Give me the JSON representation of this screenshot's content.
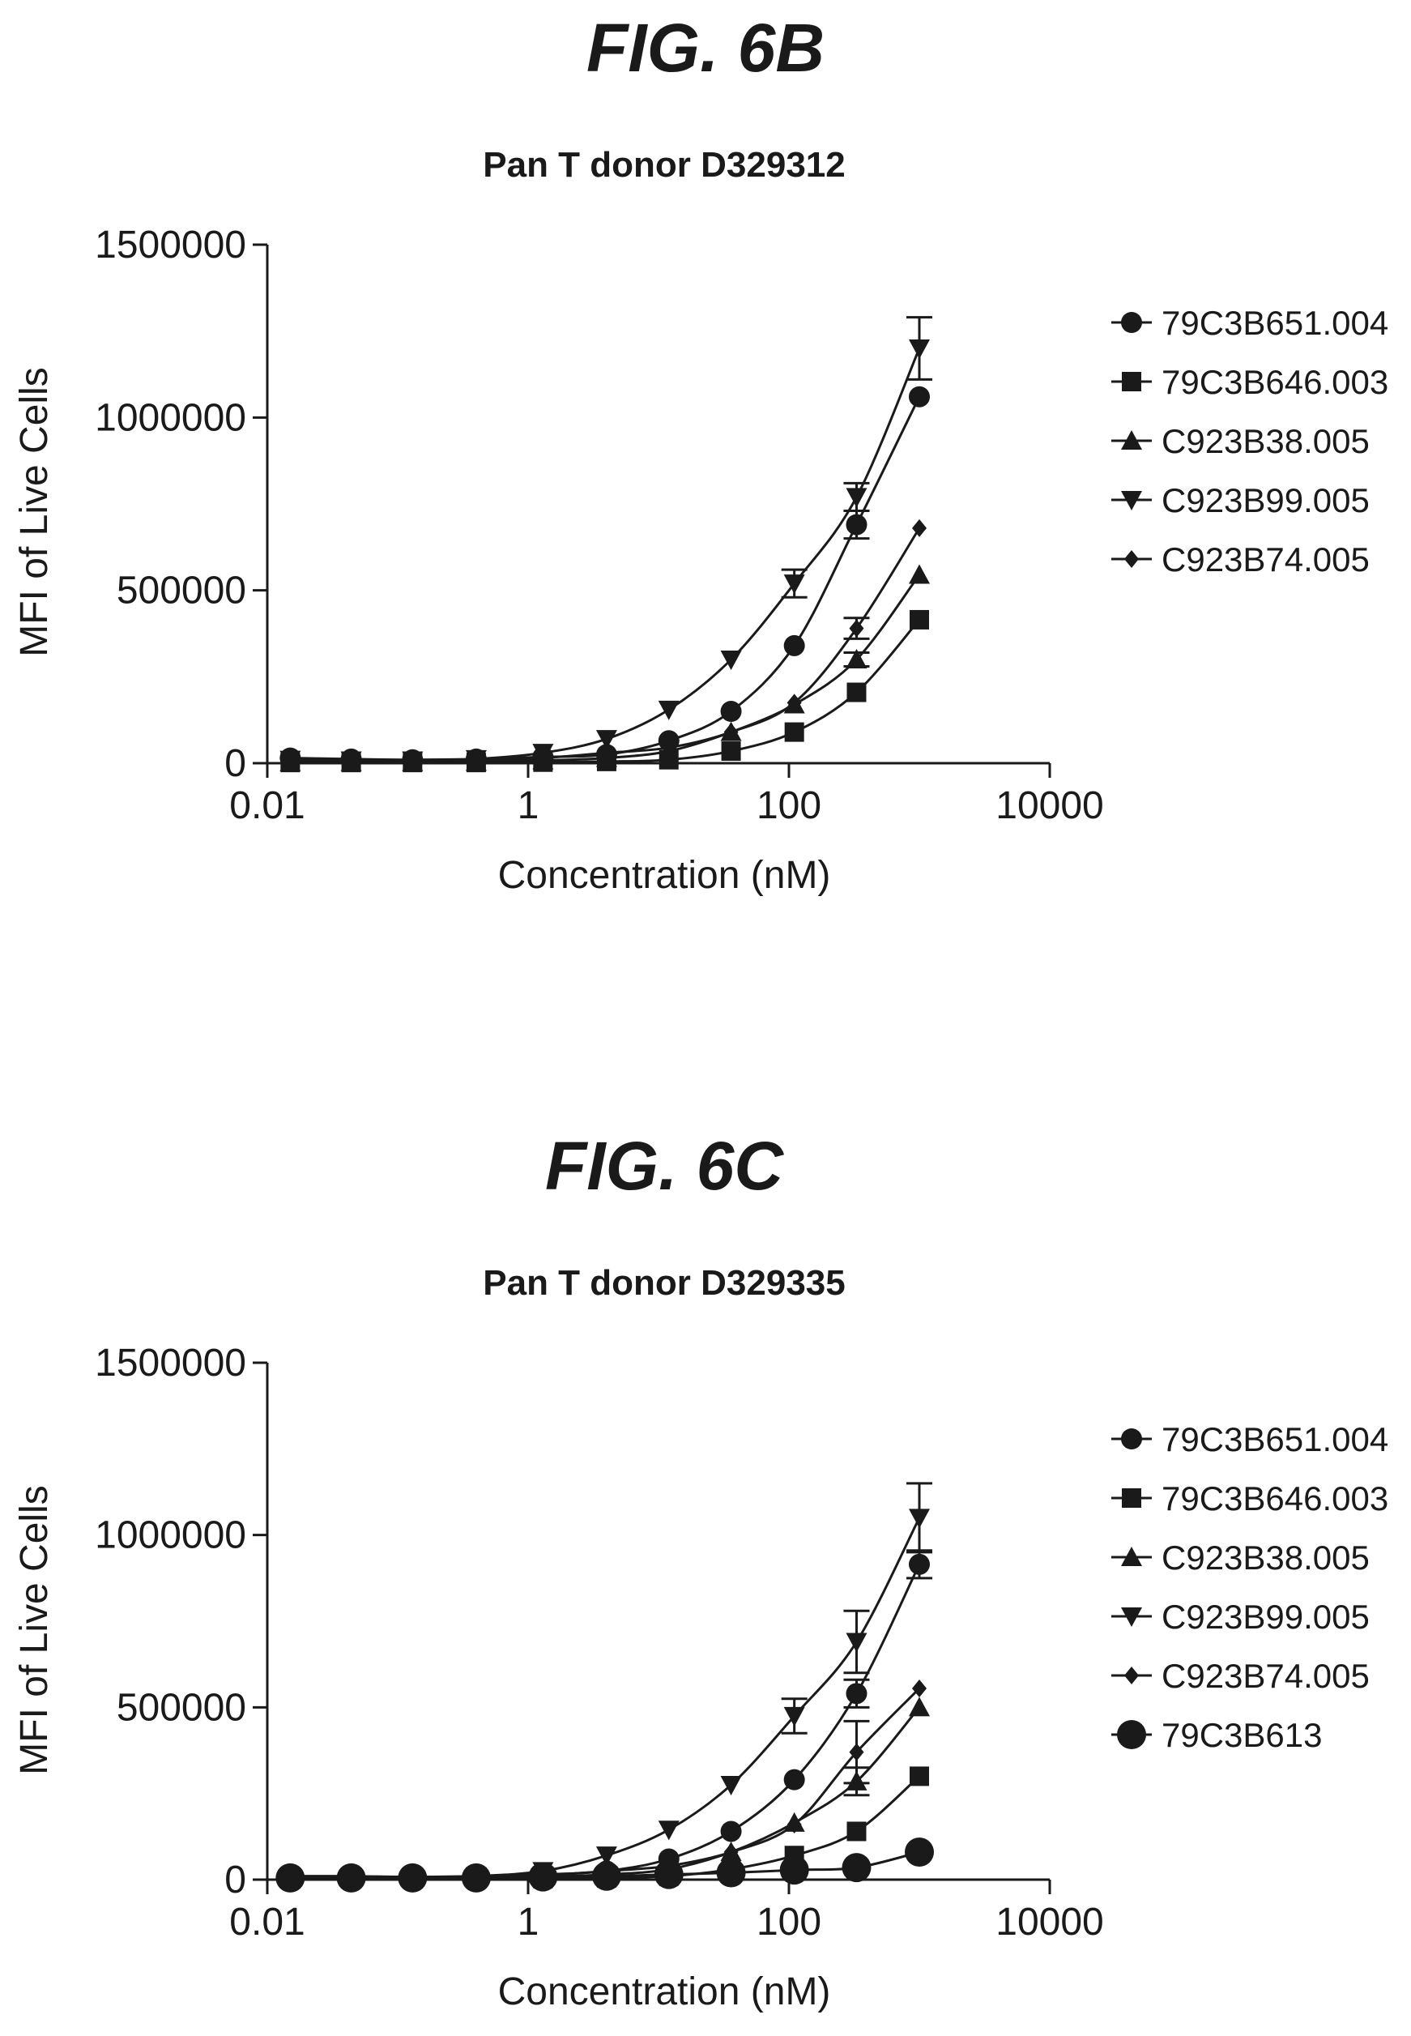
{
  "chart_data": [
    {
      "type": "line",
      "figure_label": "FIG. 6B",
      "title": "Pan T donor D329312",
      "xlabel": "Concentration (nM)",
      "ylabel": "MFI of Live Cells",
      "xscale": "log",
      "xlim": [
        0.01,
        10000
      ],
      "ylim": [
        0,
        1500000
      ],
      "xticks": [
        "0.01",
        "1",
        "100",
        "10000"
      ],
      "yticks": [
        "0",
        "500000",
        "1000000",
        "1500000"
      ],
      "legend_position": "right",
      "x": [
        0.015,
        0.044,
        0.13,
        0.4,
        1.3,
        4,
        12,
        36,
        110,
        330,
        1000
      ],
      "series": [
        {
          "name": "79C3B651.004",
          "marker": "circle",
          "values": [
            15000,
            12000,
            10000,
            12000,
            18000,
            25000,
            65000,
            150000,
            340000,
            690000,
            1060000
          ],
          "errors": [
            0,
            0,
            0,
            0,
            0,
            0,
            0,
            0,
            0,
            40000,
            0
          ]
        },
        {
          "name": "79C3B646.003",
          "marker": "square",
          "values": [
            2000,
            2000,
            2000,
            2000,
            3000,
            5000,
            10000,
            35000,
            90000,
            205000,
            415000
          ],
          "errors": [
            0,
            0,
            0,
            0,
            0,
            0,
            0,
            0,
            0,
            0,
            0
          ]
        },
        {
          "name": "C923B38.005",
          "marker": "triangle-up",
          "values": [
            3000,
            3000,
            3000,
            4000,
            8000,
            15000,
            35000,
            90000,
            170000,
            300000,
            545000
          ],
          "errors": [
            0,
            0,
            0,
            0,
            0,
            0,
            0,
            0,
            0,
            20000,
            0
          ]
        },
        {
          "name": "C923B99.005",
          "marker": "triangle-down",
          "values": [
            10000,
            8000,
            8000,
            12000,
            30000,
            70000,
            155000,
            300000,
            520000,
            770000,
            1200000
          ],
          "errors": [
            0,
            0,
            0,
            0,
            0,
            0,
            0,
            0,
            40000,
            40000,
            90000
          ]
        },
        {
          "name": "C923B74.005",
          "marker": "diamond",
          "values": [
            5000,
            5000,
            5000,
            6000,
            15000,
            30000,
            45000,
            90000,
            175000,
            390000,
            680000
          ],
          "errors": [
            0,
            0,
            0,
            0,
            0,
            0,
            0,
            0,
            0,
            30000,
            0
          ]
        }
      ]
    },
    {
      "type": "line",
      "figure_label": "FIG. 6C",
      "title": "Pan T donor D329335",
      "xlabel": "Concentration (nM)",
      "ylabel": "MFI of Live Cells",
      "xscale": "log",
      "xlim": [
        0.01,
        10000
      ],
      "ylim": [
        0,
        1500000
      ],
      "xticks": [
        "0.01",
        "1",
        "100",
        "10000"
      ],
      "yticks": [
        "0",
        "500000",
        "1000000",
        "1500000"
      ],
      "legend_position": "right",
      "x": [
        0.015,
        0.044,
        0.13,
        0.4,
        1.3,
        4,
        12,
        36,
        110,
        330,
        1000
      ],
      "series": [
        {
          "name": "79C3B651.004",
          "marker": "circle",
          "values": [
            10000,
            10000,
            8000,
            10000,
            15000,
            25000,
            60000,
            140000,
            290000,
            540000,
            915000
          ],
          "errors": [
            0,
            0,
            0,
            0,
            0,
            0,
            0,
            0,
            0,
            40000,
            40000
          ]
        },
        {
          "name": "79C3B646.003",
          "marker": "square",
          "values": [
            2000,
            2000,
            2000,
            2000,
            3000,
            5000,
            10000,
            30000,
            70000,
            140000,
            300000
          ],
          "errors": [
            0,
            0,
            0,
            0,
            0,
            0,
            0,
            0,
            0,
            0,
            0
          ]
        },
        {
          "name": "C923B38.005",
          "marker": "triangle-up",
          "values": [
            3000,
            3000,
            3000,
            4000,
            8000,
            15000,
            30000,
            80000,
            165000,
            285000,
            500000
          ],
          "errors": [
            0,
            0,
            0,
            0,
            0,
            0,
            0,
            0,
            0,
            40000,
            0
          ]
        },
        {
          "name": "C923B99.005",
          "marker": "triangle-down",
          "values": [
            8000,
            8000,
            8000,
            10000,
            25000,
            70000,
            145000,
            275000,
            475000,
            690000,
            1050000
          ],
          "errors": [
            0,
            0,
            0,
            0,
            0,
            0,
            0,
            0,
            50000,
            90000,
            100000
          ]
        },
        {
          "name": "C923B74.005",
          "marker": "diamond",
          "values": [
            5000,
            5000,
            5000,
            6000,
            12000,
            25000,
            40000,
            80000,
            160000,
            370000,
            555000
          ],
          "errors": [
            0,
            0,
            0,
            0,
            0,
            0,
            0,
            0,
            0,
            90000,
            0
          ]
        },
        {
          "name": "79C3B613",
          "marker": "big-circle",
          "values": [
            5000,
            5000,
            5000,
            5000,
            8000,
            10000,
            15000,
            20000,
            28000,
            35000,
            80000
          ],
          "errors": [
            0,
            0,
            0,
            0,
            0,
            0,
            0,
            0,
            0,
            0,
            0
          ]
        }
      ]
    }
  ]
}
